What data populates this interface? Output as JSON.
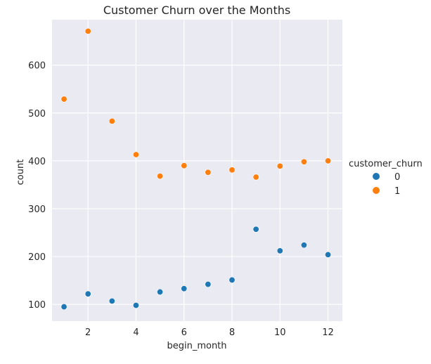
{
  "chart_data": {
    "type": "scatter",
    "title": "Customer Churn over the Months",
    "xlabel": "begin_month",
    "ylabel": "count",
    "xlim": [
      0.5,
      12.6
    ],
    "ylim": [
      65,
      695
    ],
    "xticks": [
      2,
      4,
      6,
      8,
      10,
      12
    ],
    "yticks": [
      100,
      200,
      300,
      400,
      500,
      600
    ],
    "grid": true,
    "legend": {
      "title": "customer_churn",
      "placement": "right"
    },
    "x": [
      1,
      2,
      3,
      4,
      5,
      6,
      7,
      8,
      9,
      10,
      11,
      12
    ],
    "series": [
      {
        "name": "0",
        "color": "#1f77b4",
        "values": [
          95,
          122,
          107,
          98,
          126,
          133,
          142,
          151,
          257,
          212,
          224,
          204
        ]
      },
      {
        "name": "1",
        "color": "#ff7f0e",
        "values": [
          529,
          671,
          483,
          413,
          368,
          390,
          376,
          381,
          366,
          389,
          398,
          400
        ]
      }
    ]
  }
}
